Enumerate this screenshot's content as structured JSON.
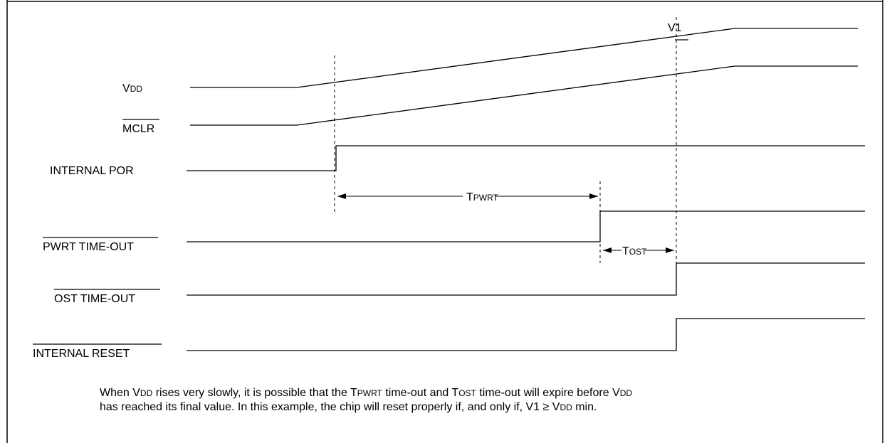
{
  "signals": {
    "vdd": {
      "prefix": "V",
      "sub": "DD"
    },
    "mclr": "MCLR",
    "internal_por": "INTERNAL POR",
    "pwrt": "PWRT TIME-OUT",
    "ost": "OST TIME-OUT",
    "internal_reset": "INTERNAL RESET"
  },
  "markers": {
    "v1": "V1",
    "tpwrt": {
      "prefix": "T",
      "sub": "PWRT"
    },
    "tost": {
      "prefix": "T",
      "sub": "OST"
    }
  },
  "note": {
    "l1_a": "When V",
    "l1_b": "DD",
    "l1_c": " rises very slowly, it is possible that the T",
    "l1_d": "PWRT",
    "l1_e": " time-out and T",
    "l1_f": "OST",
    "l1_g": " time-out will expire before V",
    "l1_h": "DD",
    "l2_a": "has reached its final value. In this example, the chip will reset properly if, and only if, V1 ≥ V",
    "l2_b": "DD",
    "l2_c": " min."
  }
}
